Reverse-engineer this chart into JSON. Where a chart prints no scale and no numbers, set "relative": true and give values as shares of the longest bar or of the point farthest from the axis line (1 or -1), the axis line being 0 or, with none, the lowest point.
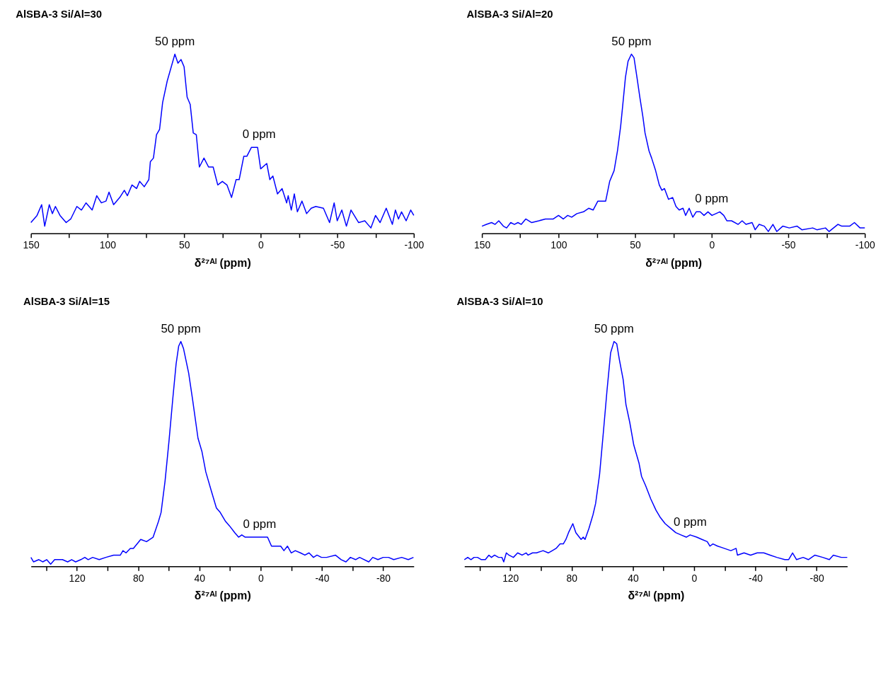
{
  "chart_data": [
    {
      "type": "line",
      "title": "AlSBA-3 Si/Al=30",
      "xlabel": "δ²⁷ᴬˡ (ppm)",
      "relative": true,
      "tick_labels": "x",
      "xlim": [
        150,
        -100
      ],
      "xticks": [
        150,
        {
          "value": 125,
          "label": null
        },
        100,
        {
          "value": 75,
          "label": null
        },
        50,
        {
          "value": 25,
          "label": null
        },
        0,
        {
          "value": -25,
          "label": null
        },
        -50,
        {
          "value": -75,
          "label": null
        },
        -100
      ],
      "annotations": [
        {
          "text": "50 ppm",
          "x": 56,
          "y": 1.0
        },
        {
          "text": "0 ppm",
          "x": 1,
          "y": 0.48
        }
      ],
      "series": [
        {
          "color": "#0000ff",
          "x": [
            150,
            146,
            143,
            141,
            138,
            136,
            134,
            131,
            127,
            124,
            120,
            117,
            114,
            110,
            107,
            104,
            101,
            99,
            96,
            92,
            89,
            87,
            84,
            81,
            79,
            76,
            73,
            72,
            70,
            68,
            66,
            64,
            61,
            58,
            56,
            54,
            52,
            50,
            48,
            46,
            44,
            42,
            40,
            37,
            34,
            31,
            28,
            25,
            22,
            19,
            16,
            14,
            11,
            9,
            6,
            2,
            0,
            -4,
            -6,
            -8,
            -11,
            -14,
            -17,
            -18,
            -20,
            -22,
            -24,
            -27,
            -30,
            -33,
            -36,
            -41,
            -45,
            -48,
            -50,
            -53,
            -56,
            -59,
            -64,
            -68,
            -72,
            -75,
            -78,
            -82,
            -86,
            -88,
            -90,
            -92,
            -95,
            -98,
            -100
          ],
          "values": [
            0.06,
            0.1,
            0.16,
            0.04,
            0.16,
            0.11,
            0.15,
            0.1,
            0.06,
            0.08,
            0.15,
            0.13,
            0.17,
            0.13,
            0.21,
            0.17,
            0.18,
            0.23,
            0.16,
            0.2,
            0.24,
            0.21,
            0.27,
            0.25,
            0.29,
            0.26,
            0.3,
            0.4,
            0.42,
            0.55,
            0.58,
            0.73,
            0.85,
            0.94,
            1.0,
            0.95,
            0.97,
            0.93,
            0.76,
            0.72,
            0.56,
            0.55,
            0.37,
            0.42,
            0.37,
            0.37,
            0.27,
            0.29,
            0.27,
            0.2,
            0.3,
            0.3,
            0.43,
            0.43,
            0.48,
            0.48,
            0.36,
            0.39,
            0.3,
            0.32,
            0.22,
            0.25,
            0.17,
            0.21,
            0.13,
            0.22,
            0.12,
            0.18,
            0.11,
            0.14,
            0.15,
            0.14,
            0.06,
            0.17,
            0.07,
            0.13,
            0.04,
            0.13,
            0.06,
            0.07,
            0.03,
            0.1,
            0.06,
            0.14,
            0.05,
            0.13,
            0.08,
            0.12,
            0.07,
            0.13,
            0.1
          ]
        }
      ]
    },
    {
      "type": "line",
      "title": "AlSBA-3 Si/Al=20",
      "xlabel": "δ²⁷ᴬˡ (ppm)",
      "relative": true,
      "tick_labels": "x",
      "xlim": [
        150,
        -100
      ],
      "xticks": [
        150,
        {
          "value": 125,
          "label": null
        },
        100,
        {
          "value": 75,
          "label": null
        },
        50,
        {
          "value": 25,
          "label": null
        },
        0,
        {
          "value": -25,
          "label": null
        },
        -50,
        {
          "value": -75,
          "label": null
        },
        -100
      ],
      "annotations": [
        {
          "text": "50 ppm",
          "x": 52.4,
          "y": 1.0
        },
        {
          "text": "0 ppm",
          "x": 0,
          "y": 0.12
        }
      ],
      "series": [
        {
          "color": "#0000ff",
          "x": [
            150,
            147,
            143.7,
            141.4,
            139,
            136,
            133.9,
            131.2,
            128.8,
            126.5,
            124.3,
            121.4,
            117.5,
            112.8,
            108.6,
            103.4,
            100,
            96.9,
            94,
            91.4,
            88,
            83.7,
            80.3,
            77.4,
            74.3,
            71.2,
            69.2,
            66.6,
            63.7,
            61.5,
            59.4,
            58,
            56.3,
            54.6,
            52.4,
            50.7,
            48.6,
            46.9,
            44.9,
            43.5,
            40.9,
            39.2,
            36.6,
            34.2,
            32.5,
            30.8,
            28.2,
            25.5,
            23.3,
            21.2,
            18.7,
            17,
            14.7,
            12.3,
            10.1,
            7.5,
            5,
            2.4,
            -0.2,
            -5.3,
            -7.9,
            -9.9,
            -13,
            -17.3,
            -19.9,
            -22.4,
            -26.4,
            -28.4,
            -31,
            -34.4,
            -37,
            -40,
            -42.5,
            -46.4,
            -50.7,
            -55.8,
            -58.9,
            -66,
            -68.7,
            -74.3,
            -76.7,
            -82.4,
            -85,
            -90.1,
            -93.2,
            -96.9,
            -100
          ],
          "values": [
            0.04,
            0.05,
            0.06,
            0.05,
            0.07,
            0.04,
            0.03,
            0.06,
            0.05,
            0.06,
            0.05,
            0.08,
            0.06,
            0.07,
            0.08,
            0.08,
            0.1,
            0.08,
            0.1,
            0.09,
            0.11,
            0.12,
            0.14,
            0.13,
            0.18,
            0.18,
            0.18,
            0.29,
            0.35,
            0.46,
            0.6,
            0.72,
            0.87,
            0.96,
            1.0,
            0.98,
            0.86,
            0.76,
            0.65,
            0.56,
            0.46,
            0.42,
            0.35,
            0.27,
            0.24,
            0.25,
            0.19,
            0.2,
            0.15,
            0.13,
            0.14,
            0.1,
            0.14,
            0.09,
            0.12,
            0.12,
            0.1,
            0.12,
            0.1,
            0.12,
            0.1,
            0.07,
            0.07,
            0.05,
            0.07,
            0.05,
            0.06,
            0.02,
            0.05,
            0.04,
            0.01,
            0.05,
            0.01,
            0.04,
            0.03,
            0.04,
            0.02,
            0.03,
            0.02,
            0.03,
            0.01,
            0.05,
            0.04,
            0.04,
            0.06,
            0.03,
            0.03
          ]
        }
      ]
    },
    {
      "type": "line",
      "title": "AlSBA-3 Si/Al=15",
      "xlabel": "δ²⁷ᴬˡ (ppm)",
      "relative": true,
      "tick_labels": "x",
      "xlim": [
        150,
        -100
      ],
      "xticks": [
        {
          "value": 140,
          "label": null
        },
        120,
        {
          "value": 100,
          "label": null
        },
        80,
        {
          "value": 60,
          "label": null
        },
        40,
        {
          "value": 20,
          "label": null
        },
        0,
        {
          "value": -20,
          "label": null
        },
        -40,
        {
          "value": -60,
          "label": null
        },
        -80
      ],
      "annotations": [
        {
          "text": "50 ppm",
          "x": 52.1,
          "y": 1.0
        },
        {
          "text": "0 ppm",
          "x": 0.7,
          "y": 0.13
        }
      ],
      "series": [
        {
          "color": "#0000ff",
          "x": [
            150,
            148.3,
            144.8,
            142.3,
            139.7,
            137.1,
            134.5,
            129.4,
            126,
            123.4,
            120.8,
            117.4,
            114.8,
            112.6,
            109.7,
            105.4,
            101.1,
            96,
            91.6,
            89.9,
            87.9,
            85.1,
            83.1,
            78.3,
            74.5,
            70.2,
            66.7,
            65,
            62.4,
            59.8,
            57.3,
            55.2,
            53.5,
            52.1,
            50.4,
            47,
            44.4,
            40.9,
            38.3,
            35.8,
            32.4,
            28.9,
            26.4,
            22.9,
            20.3,
            16.9,
            14.4,
            12.3,
            10.1,
            5,
            0.7,
            -4.5,
            -7.1,
            -9.7,
            -13.1,
            -15.2,
            -17.5,
            -20,
            -22.6,
            -26,
            -28.9,
            -31.6,
            -34.5,
            -36.8,
            -39.7,
            -43.1,
            -48.8,
            -52.6,
            -55.7,
            -58.6,
            -62,
            -64.6,
            -70.6,
            -73.2,
            -76.6,
            -80,
            -83.5,
            -86.9,
            -92.1,
            -96.4,
            -99.8
          ],
          "values": [
            0.04,
            0.02,
            0.03,
            0.02,
            0.03,
            0.01,
            0.03,
            0.03,
            0.02,
            0.03,
            0.02,
            0.03,
            0.04,
            0.03,
            0.04,
            0.03,
            0.04,
            0.05,
            0.05,
            0.07,
            0.06,
            0.08,
            0.08,
            0.12,
            0.11,
            0.13,
            0.2,
            0.24,
            0.38,
            0.56,
            0.75,
            0.9,
            0.98,
            1.0,
            0.97,
            0.86,
            0.74,
            0.57,
            0.51,
            0.42,
            0.34,
            0.26,
            0.24,
            0.2,
            0.18,
            0.15,
            0.13,
            0.14,
            0.13,
            0.13,
            0.13,
            0.13,
            0.09,
            0.09,
            0.09,
            0.07,
            0.09,
            0.06,
            0.07,
            0.06,
            0.05,
            0.06,
            0.04,
            0.05,
            0.04,
            0.04,
            0.05,
            0.03,
            0.02,
            0.04,
            0.03,
            0.04,
            0.02,
            0.04,
            0.03,
            0.04,
            0.04,
            0.03,
            0.04,
            0.03,
            0.04
          ]
        }
      ]
    },
    {
      "type": "line",
      "title": "AlSBA-3 Si/Al=10",
      "xlabel": "δ²⁷ᴬˡ (ppm)",
      "relative": true,
      "tick_labels": "x",
      "xlim": [
        150,
        -100
      ],
      "xticks": [
        {
          "value": 140,
          "label": null
        },
        120,
        {
          "value": 100,
          "label": null
        },
        80,
        {
          "value": 60,
          "label": null
        },
        40,
        {
          "value": 20,
          "label": null
        },
        0,
        {
          "value": -20,
          "label": null
        },
        -40,
        {
          "value": -60,
          "label": null
        },
        -80
      ],
      "annotations": [
        {
          "text": "50 ppm",
          "x": 52.3,
          "y": 1.0
        },
        {
          "text": "0 ppm",
          "x": 2.6,
          "y": 0.14
        }
      ],
      "series": [
        {
          "color": "#0000ff",
          "x": [
            150,
            147.8,
            145.7,
            143.7,
            141.4,
            138.9,
            136.3,
            134,
            132.3,
            130.3,
            127.7,
            125.5,
            124.3,
            122.6,
            120.9,
            118,
            115.2,
            112.3,
            109.7,
            108.4,
            105.5,
            102.9,
            98.6,
            95.2,
            92.6,
            90.1,
            87.5,
            85.4,
            83.7,
            82,
            79.2,
            77.2,
            73.8,
            72.4,
            71.2,
            68.6,
            66,
            64.3,
            61.7,
            59.2,
            56.9,
            54.5,
            52.3,
            50.5,
            48.8,
            46.3,
            44.5,
            42,
            39.4,
            36,
            34.3,
            31.7,
            28.3,
            24.9,
            22.3,
            18.9,
            15.4,
            12,
            8.6,
            5.1,
            2.6,
            -1.7,
            -5.1,
            -8.6,
            -10.3,
            -12.3,
            -15.4,
            -19.7,
            -24,
            -27.4,
            -28.3,
            -32.6,
            -36.9,
            -41.2,
            -45.5,
            -49.7,
            -54,
            -59.2,
            -61.7,
            -64.3,
            -66.9,
            -71.2,
            -74.6,
            -78.9,
            -84,
            -88.3,
            -90.9,
            -96.1,
            -100
          ],
          "values": [
            0.03,
            0.04,
            0.03,
            0.04,
            0.04,
            0.03,
            0.03,
            0.05,
            0.04,
            0.05,
            0.04,
            0.04,
            0.02,
            0.06,
            0.05,
            0.04,
            0.06,
            0.05,
            0.06,
            0.05,
            0.06,
            0.06,
            0.07,
            0.06,
            0.07,
            0.08,
            0.1,
            0.1,
            0.12,
            0.15,
            0.19,
            0.15,
            0.12,
            0.13,
            0.12,
            0.17,
            0.23,
            0.28,
            0.41,
            0.6,
            0.78,
            0.95,
            1.0,
            0.99,
            0.92,
            0.83,
            0.72,
            0.64,
            0.54,
            0.46,
            0.4,
            0.36,
            0.3,
            0.25,
            0.22,
            0.19,
            0.17,
            0.15,
            0.14,
            0.13,
            0.14,
            0.13,
            0.12,
            0.11,
            0.09,
            0.1,
            0.09,
            0.08,
            0.07,
            0.08,
            0.05,
            0.06,
            0.05,
            0.06,
            0.06,
            0.05,
            0.04,
            0.03,
            0.03,
            0.06,
            0.03,
            0.04,
            0.03,
            0.05,
            0.04,
            0.03,
            0.05,
            0.04,
            0.04
          ]
        }
      ]
    }
  ]
}
